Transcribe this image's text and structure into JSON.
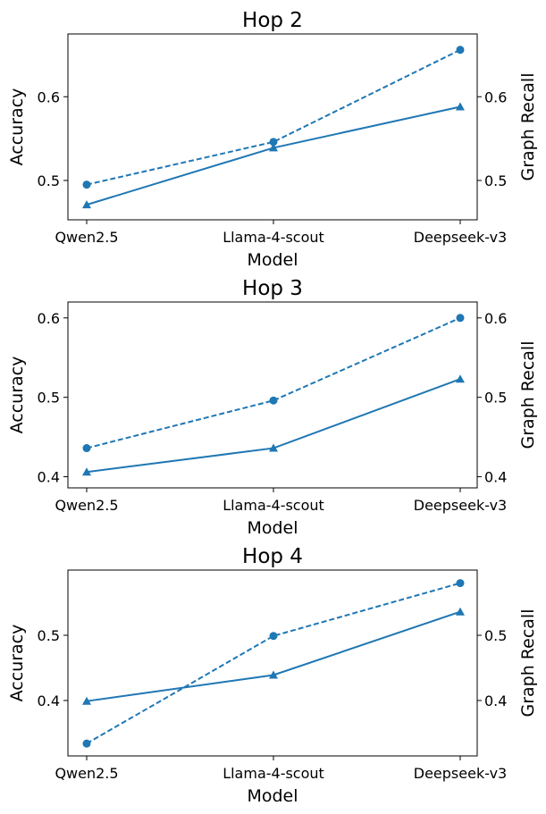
{
  "chart_data": [
    {
      "type": "line",
      "title": "Hop 2",
      "xlabel": "Model",
      "ylabel": "Accuracy",
      "ylabel_right": "Graph Recall",
      "categories": [
        "Qwen2.5",
        "Llama-4-scout",
        "Deepseek-v3"
      ],
      "ylim": [
        0.453,
        0.675
      ],
      "y_ticks": [
        0.5,
        0.6
      ],
      "y_ticks_right": [
        0.5,
        0.6
      ],
      "series": [
        {
          "name": "Accuracy",
          "style": "solid",
          "marker": "triangle",
          "values": [
            0.471,
            0.539,
            0.588
          ]
        },
        {
          "name": "Graph Recall",
          "style": "dashed",
          "marker": "circle",
          "values": [
            0.495,
            0.546,
            0.656
          ]
        }
      ]
    },
    {
      "type": "line",
      "title": "Hop 3",
      "xlabel": "Model",
      "ylabel": "Accuracy",
      "ylabel_right": "Graph Recall",
      "categories": [
        "Qwen2.5",
        "Llama-4-scout",
        "Deepseek-v3"
      ],
      "ylim": [
        0.386,
        0.62
      ],
      "y_ticks": [
        0.4,
        0.5,
        0.6
      ],
      "y_ticks_right": [
        0.4,
        0.5,
        0.6
      ],
      "series": [
        {
          "name": "Accuracy",
          "style": "solid",
          "marker": "triangle",
          "values": [
            0.406,
            0.436,
            0.523
          ]
        },
        {
          "name": "Graph Recall",
          "style": "dashed",
          "marker": "circle",
          "values": [
            0.436,
            0.496,
            0.6
          ]
        }
      ]
    },
    {
      "type": "line",
      "title": "Hop 4",
      "xlabel": "Model",
      "ylabel": "Accuracy",
      "ylabel_right": "Graph Recall",
      "categories": [
        "Qwen2.5",
        "Llama-4-scout",
        "Deepseek-v3"
      ],
      "ylim": [
        0.315,
        0.6
      ],
      "y_ticks": [
        0.4,
        0.5
      ],
      "y_ticks_right": [
        0.4,
        0.5
      ],
      "series": [
        {
          "name": "Accuracy",
          "style": "solid",
          "marker": "triangle",
          "values": [
            0.399,
            0.439,
            0.536
          ]
        },
        {
          "name": "Graph Recall",
          "style": "dashed",
          "marker": "circle",
          "values": [
            0.334,
            0.499,
            0.58
          ]
        }
      ]
    }
  ],
  "colors": {
    "line": "#1f77b4",
    "axis": "#000000",
    "background": "#ffffff"
  }
}
